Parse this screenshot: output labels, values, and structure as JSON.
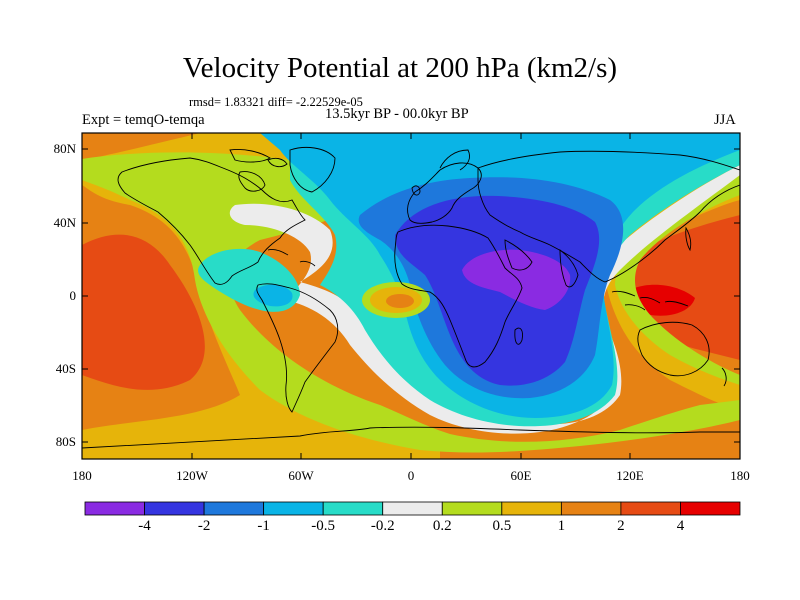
{
  "title": "Velocity Potential at 200 hPa (km2/s)",
  "stats": "rmsd= 1.83321 diff= -2.22529e-05",
  "experiment": "Expt = temqO-temqa",
  "period": "13.5kyr BP - 00.0kyr BP",
  "season": "JJA",
  "lat_labels": [
    "80N",
    "40N",
    "0",
    "40S",
    "80S"
  ],
  "lon_labels": [
    "180",
    "120W",
    "60W",
    "0",
    "60E",
    "120E",
    "180"
  ],
  "colorbar": {
    "labels": [
      "-4",
      "-2",
      "-1",
      "-0.5",
      "-0.2",
      "0.2",
      "0.5",
      "1",
      "2",
      "4"
    ],
    "colors": [
      "#8a2be2",
      "#3535e0",
      "#1e78dc",
      "#0ab4e6",
      "#28dcc8",
      "#ececec",
      "#b4dc1e",
      "#e6b40a",
      "#e68214",
      "#e64b14",
      "#e60000"
    ]
  },
  "chart_data": {
    "type": "contour-map",
    "title": "Velocity Potential at 200 hPa (km2/s)",
    "variable": "velocity potential difference",
    "units": "km2/s",
    "levels": [
      -4,
      -2,
      -1,
      -0.5,
      -0.2,
      0.2,
      0.5,
      1,
      2,
      4
    ],
    "lon_range": [
      -180,
      180
    ],
    "lat_range": [
      -90,
      90
    ],
    "features": [
      {
        "name": "minimum over Africa/Arabia",
        "lon": 45,
        "lat": 15,
        "value": -4.5
      },
      {
        "name": "maximum over Maritime Continent",
        "lon": 130,
        "lat": -5,
        "value": 4.5
      },
      {
        "name": "maximum over east Pacific",
        "lon": -165,
        "lat": 10,
        "value": 3
      }
    ]
  }
}
